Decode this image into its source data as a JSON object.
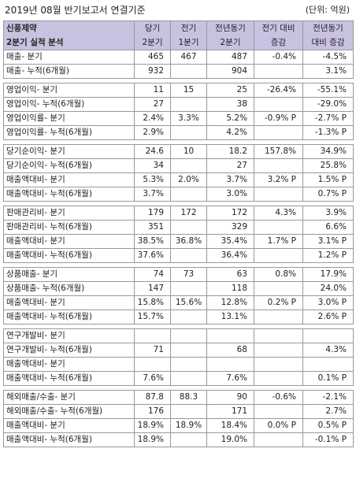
{
  "title": "2019년 08월 반기보고서 연결기준",
  "unit": "(단위: 억원)",
  "header": {
    "col0": [
      "신풍제약",
      "2분기 실적 분석"
    ],
    "col1": [
      "당기",
      "2분기"
    ],
    "col2": [
      "전기",
      "1분기"
    ],
    "col3": [
      "전년동기",
      "2분기"
    ],
    "col4": [
      "전기 대비",
      "증감"
    ],
    "col5": [
      "전년동기",
      "대비 증감"
    ]
  },
  "groups": [
    {
      "rows": [
        [
          "매출- 분기",
          "465",
          "467",
          "487",
          "-0.4%",
          "-4.5%"
        ],
        [
          "매출- 누적(6개월)",
          "932",
          "",
          "904",
          "",
          "3.1%"
        ]
      ]
    },
    {
      "rows": [
        [
          "영업이익- 분기",
          "11",
          "15",
          "25",
          "-26.4%",
          "-55.1%"
        ],
        [
          "영업이익- 누적(6개월)",
          "27",
          "",
          "38",
          "",
          "-29.0%"
        ],
        [
          "영업이익률- 분기",
          "2.4%",
          "3.3%",
          "5.2%",
          "-0.9% P",
          "-2.7% P"
        ],
        [
          "영업이익률- 누적(6개월)",
          "2.9%",
          "",
          "4.2%",
          "",
          "-1.3% P"
        ]
      ]
    },
    {
      "rows": [
        [
          "당기순이익- 분기",
          "24.6",
          "10",
          "18.2",
          "157.8%",
          "34.9%"
        ],
        [
          "당기순이익- 누적(6개월)",
          "34",
          "",
          "27",
          "",
          "25.8%"
        ],
        [
          "매출액대비- 분기",
          "5.3%",
          "2.0%",
          "3.7%",
          "3.2% P",
          "1.5% P"
        ],
        [
          "매출액대비- 누적(6개월)",
          "3.7%",
          "",
          "3.0%",
          "",
          "0.7% P"
        ]
      ]
    },
    {
      "rows": [
        [
          "판매관리비- 분기",
          "179",
          "172",
          "172",
          "4.3%",
          "3.9%"
        ],
        [
          "판매관리비- 누적(6개월)",
          "351",
          "",
          "329",
          "",
          "6.6%"
        ],
        [
          "매출액대비- 분기",
          "38.5%",
          "36.8%",
          "35.4%",
          "1.7% P",
          "3.1% P"
        ],
        [
          "매출액대비- 누적(6개월)",
          "37.6%",
          "",
          "36.4%",
          "",
          "1.2% P"
        ]
      ]
    },
    {
      "rows": [
        [
          "상품매출- 분기",
          "74",
          "73",
          "63",
          "0.8%",
          "17.9%"
        ],
        [
          "상품매출- 누적(6개월)",
          "147",
          "",
          "118",
          "",
          "24.0%"
        ],
        [
          "매출액대비- 분기",
          "15.8%",
          "15.6%",
          "12.8%",
          "0.2% P",
          "3.0% P"
        ],
        [
          "매출액대비- 누적(6개월)",
          "15.7%",
          "",
          "13.1%",
          "",
          "2.6% P"
        ]
      ]
    },
    {
      "rows": [
        [
          "연구개발비- 분기",
          "",
          "",
          "",
          "",
          ""
        ],
        [
          "연구개발비- 누적(6개월)",
          "71",
          "",
          "68",
          "",
          "4.3%"
        ],
        [
          "매출액대비- 분기",
          "",
          "",
          "",
          "",
          ""
        ],
        [
          "매출액대비- 누적(6개월)",
          "7.6%",
          "",
          "7.6%",
          "",
          "0.1% P"
        ]
      ]
    },
    {
      "rows": [
        [
          "해외매출/수출- 분기",
          "87.8",
          "88.3",
          "90",
          "-0.6%",
          "-2.1%"
        ],
        [
          "해외매출/수출- 누적(6개월)",
          "176",
          "",
          "171",
          "",
          "2.7%"
        ],
        [
          "매출액대비- 분기",
          "18.9%",
          "18.9%",
          "18.4%",
          "0.0% P",
          "0.5% P"
        ],
        [
          "매출액대비- 누적(6개월)",
          "18.9%",
          "",
          "19.0%",
          "",
          "-0.1% P"
        ]
      ]
    }
  ]
}
